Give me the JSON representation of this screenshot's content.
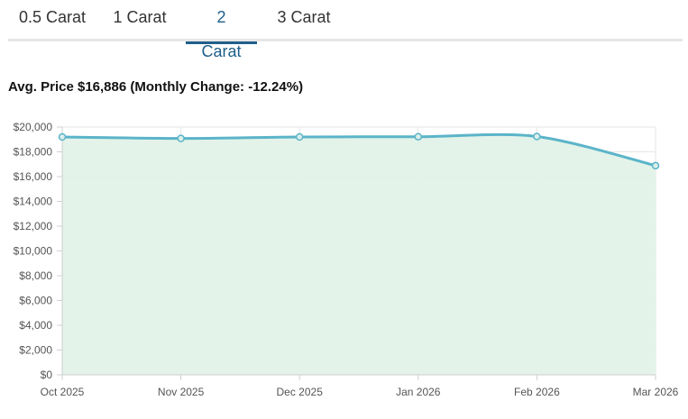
{
  "tabs": [
    {
      "label": "0.5 Carat",
      "active": false
    },
    {
      "label": "1 Carat",
      "active": false
    },
    {
      "label": "2 Carat",
      "active": true
    },
    {
      "label": "3 Carat",
      "active": false
    }
  ],
  "summary": {
    "prefix": "Avg. Price",
    "price": "$16,886",
    "change_text": "(Monthly Change: -12.24%)"
  },
  "colors": {
    "tab_active": "#1e5f8a",
    "line": "#5bb4c9",
    "fill": "#e2f2e8",
    "marker_fill": "#dcefea",
    "grid": "#e6e6e6"
  },
  "chart_data": {
    "type": "area",
    "title": "",
    "xlabel": "",
    "ylabel": "",
    "x": [
      "Oct 2025",
      "Nov 2025",
      "Dec 2025",
      "Jan 2026",
      "Feb 2026",
      "Mar 2026"
    ],
    "series": [
      {
        "values": [
          19200,
          19080,
          19200,
          19220,
          19240,
          16886
        ]
      }
    ],
    "ylim": [
      0,
      20000
    ],
    "yticks": [
      0,
      2000,
      4000,
      6000,
      8000,
      10000,
      12000,
      14000,
      16000,
      18000,
      20000
    ],
    "ytick_labels": [
      "$0",
      "$2,000",
      "$4,000",
      "$6,000",
      "$8,000",
      "$10,000",
      "$12,000",
      "$14,000",
      "$16,000",
      "$18,000",
      "$20,000"
    ],
    "grid": true,
    "legend": "none",
    "smooth": true,
    "markers": true
  }
}
